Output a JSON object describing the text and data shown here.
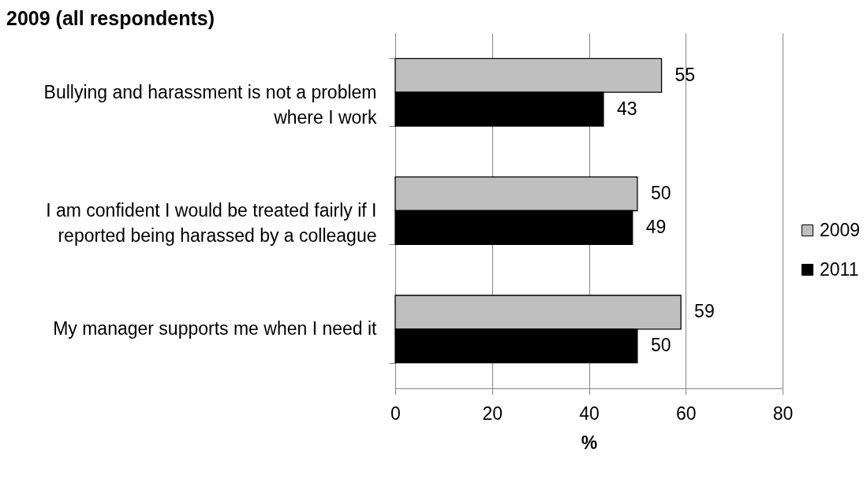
{
  "chart_data": {
    "type": "bar",
    "orientation": "horizontal",
    "title": "2009 (all respondents)",
    "xlabel": "%",
    "categories": [
      "Bullying and harassment is not a problem where I work",
      "I am confident I would be treated fairly if I reported being harassed by a colleague",
      "My manager supports me when I need it"
    ],
    "series": [
      {
        "name": "2009",
        "color": "#bfbfbf",
        "values": [
          55,
          50,
          59
        ]
      },
      {
        "name": "2011",
        "color": "#000000",
        "values": [
          43,
          49,
          50
        ]
      }
    ],
    "xlim": [
      0,
      80
    ],
    "xticks": [
      0,
      20,
      40,
      60,
      80
    ],
    "grid": "x",
    "legend": "right",
    "data_labels": true
  }
}
